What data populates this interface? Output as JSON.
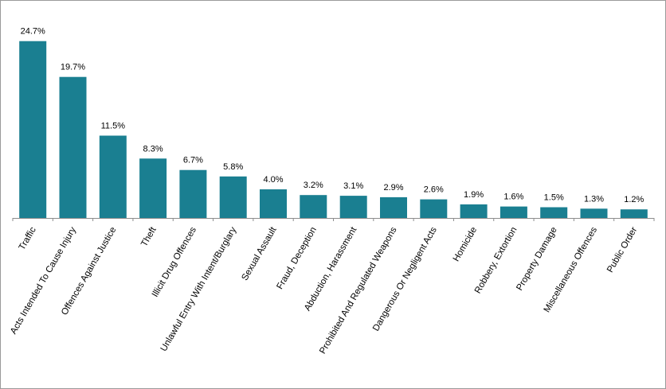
{
  "chart_data": {
    "type": "bar",
    "title": "",
    "xlabel": "",
    "ylabel": "",
    "ylim": [
      0,
      26
    ],
    "grid": false,
    "bar_color": "#1a7f91",
    "categories": [
      "Traffic",
      "Acts Intended To Cause Injury",
      "Offences Against Justice",
      "Theft",
      "Illicit Drug Offences",
      "Unlawful Entry With Intent/Burglary",
      "Sexual Assault",
      "Fraud, Deception",
      "Abduction, Harassment",
      "Prohibited And Regulated Weapons",
      "Dangerous Or Negligent Acts",
      "Homicide",
      "Robbery, Extortion",
      "Property Damage",
      "Miscellaneous Offences",
      "Public Order"
    ],
    "values": [
      24.7,
      19.7,
      11.5,
      8.3,
      6.7,
      5.8,
      4.0,
      3.2,
      3.1,
      2.9,
      2.6,
      1.9,
      1.6,
      1.5,
      1.3,
      1.2
    ],
    "value_labels": [
      "24.7%",
      "19.7%",
      "11.5%",
      "8.3%",
      "6.7%",
      "5.8%",
      "4.0%",
      "3.2%",
      "3.1%",
      "2.9%",
      "2.6%",
      "1.9%",
      "1.6%",
      "1.5%",
      "1.3%",
      "1.2%"
    ]
  }
}
